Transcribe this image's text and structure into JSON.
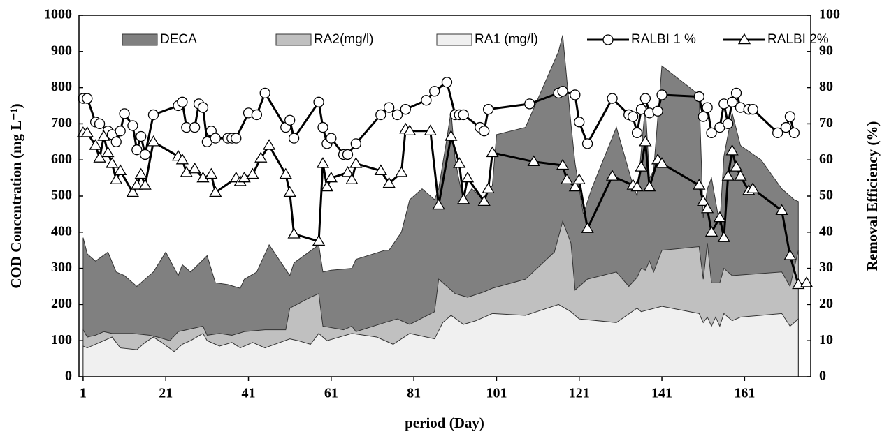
{
  "chart_data": {
    "type": "combo",
    "xlabel": "period (Day)",
    "ylabel": "COD Concentration (mg L⁻¹)",
    "y2label": "Removal Efficiency (%)",
    "xlim": [
      0,
      177
    ],
    "xticks": [
      1,
      21,
      41,
      61,
      81,
      101,
      121,
      141,
      161
    ],
    "ylim": [
      0,
      1000
    ],
    "yticks": [
      0,
      100,
      200,
      300,
      400,
      500,
      600,
      700,
      800,
      900,
      1000
    ],
    "y2lim": [
      0,
      100
    ],
    "y2ticks": [
      0,
      10,
      20,
      30,
      40,
      50,
      60,
      70,
      80,
      90,
      100
    ],
    "legend": "top",
    "series": [
      {
        "name": "DECA",
        "type": "area",
        "color": "#808080",
        "x": [
          1,
          2,
          4,
          7,
          9,
          11,
          14,
          16,
          18,
          21,
          24,
          25,
          27,
          31,
          33,
          36,
          39,
          40,
          43,
          46,
          51,
          52,
          58,
          59,
          61,
          66,
          67,
          74,
          75,
          78,
          80,
          83,
          86,
          87,
          89,
          90,
          91,
          92,
          93,
          95,
          98,
          100,
          101,
          108,
          116,
          117,
          119,
          120,
          122,
          124,
          130,
          134,
          135,
          137,
          138,
          139,
          141,
          150,
          151,
          152,
          153,
          155,
          156,
          158,
          160,
          165,
          170,
          173,
          174
        ],
        "values": [
          385,
          340,
          320,
          345,
          290,
          280,
          250,
          270,
          290,
          345,
          280,
          310,
          290,
          335,
          260,
          255,
          245,
          270,
          290,
          365,
          280,
          315,
          365,
          290,
          295,
          300,
          325,
          350,
          350,
          400,
          490,
          520,
          490,
          520,
          660,
          735,
          600,
          540,
          490,
          520,
          490,
          530,
          670,
          690,
          900,
          945,
          700,
          590,
          450,
          520,
          690,
          530,
          500,
          750,
          550,
          570,
          860,
          780,
          440,
          520,
          550,
          420,
          610,
          730,
          640,
          600,
          520,
          490,
          485
        ]
      },
      {
        "name": "RA2(mg/l)",
        "type": "area",
        "color": "#c0c0c0",
        "x": [
          1,
          2,
          4,
          6,
          8,
          10,
          13,
          17,
          19,
          22,
          24,
          30,
          31,
          34,
          37,
          40,
          45,
          50,
          51,
          56,
          58,
          59,
          64,
          66,
          67,
          74,
          77,
          80,
          86,
          87,
          91,
          94,
          98,
          100,
          108,
          115,
          117,
          119,
          120,
          123,
          130,
          133,
          135,
          136,
          137,
          138,
          139,
          141,
          150,
          151,
          152,
          153,
          155,
          156,
          158,
          170,
          172,
          174
        ],
        "values": [
          130,
          110,
          115,
          125,
          120,
          120,
          120,
          115,
          110,
          100,
          125,
          140,
          115,
          120,
          115,
          125,
          130,
          130,
          190,
          220,
          230,
          140,
          130,
          140,
          125,
          150,
          160,
          145,
          180,
          270,
          230,
          220,
          235,
          245,
          270,
          345,
          430,
          370,
          240,
          270,
          290,
          250,
          275,
          300,
          295,
          320,
          290,
          350,
          360,
          270,
          370,
          260,
          260,
          300,
          280,
          290,
          250,
          350
        ]
      },
      {
        "name": "RA1 (mg/l)",
        "type": "area",
        "color": "#f0f0f0",
        "x": [
          1,
          2,
          5,
          8,
          10,
          14,
          16,
          18,
          20,
          23,
          25,
          27,
          30,
          31,
          34,
          37,
          39,
          42,
          45,
          51,
          53,
          56,
          58,
          60,
          66,
          72,
          76,
          80,
          86,
          88,
          90,
          93,
          96,
          98,
          100,
          108,
          116,
          119,
          121,
          130,
          135,
          136,
          141,
          150,
          151,
          152,
          153,
          154,
          155,
          156,
          158,
          160,
          170,
          172,
          174
        ],
        "values": [
          85,
          80,
          95,
          110,
          80,
          75,
          95,
          110,
          95,
          70,
          90,
          100,
          120,
          100,
          85,
          95,
          80,
          95,
          80,
          105,
          100,
          90,
          120,
          100,
          120,
          110,
          90,
          120,
          105,
          150,
          170,
          145,
          155,
          165,
          175,
          170,
          200,
          180,
          160,
          150,
          190,
          180,
          195,
          175,
          150,
          165,
          140,
          165,
          140,
          175,
          155,
          165,
          175,
          140,
          160
        ]
      },
      {
        "name": "RALBI 1 %",
        "type": "line",
        "marker": "circle",
        "axis": "y2",
        "color": "#000000",
        "x": [
          1,
          2,
          4,
          5,
          7,
          8,
          9,
          10,
          11,
          13,
          14,
          15,
          16,
          18,
          24,
          25,
          26,
          28,
          29,
          30,
          31,
          32,
          33,
          36,
          37,
          38,
          41,
          43,
          45,
          50,
          51,
          52,
          58,
          59,
          60,
          61,
          64,
          65,
          67,
          73,
          75,
          77,
          79,
          84,
          86,
          89,
          91,
          92,
          93,
          97,
          98,
          99,
          109,
          116,
          117,
          120,
          121,
          123,
          129,
          133,
          134,
          135,
          136,
          137,
          138,
          140,
          141,
          150,
          151,
          152,
          153,
          155,
          156,
          157,
          158,
          159,
          160,
          162,
          163,
          169,
          171,
          172,
          173
        ],
        "values": [
          77,
          77,
          70.5,
          70,
          68,
          67,
          65,
          68,
          72.8,
          69.5,
          62.8,
          66.5,
          61.5,
          72.5,
          75,
          76,
          69,
          69,
          75.5,
          74.5,
          65,
          68,
          66,
          66,
          66,
          66,
          73,
          72.5,
          78.5,
          69,
          71,
          66,
          76,
          69,
          64.5,
          66,
          61.5,
          61.5,
          64.5,
          72.5,
          74.5,
          72.5,
          74,
          76.5,
          79,
          81.5,
          72.5,
          72.5,
          72.5,
          69,
          68,
          74,
          75.5,
          78.5,
          79,
          78,
          70.5,
          64.5,
          77,
          72.5,
          72,
          67.5,
          74,
          77,
          73,
          73.5,
          78,
          77.5,
          72,
          74.5,
          67.5,
          69,
          75.5,
          70,
          76,
          78.5,
          74.5,
          74,
          74,
          67.5,
          69,
          72,
          67.5
        ]
      },
      {
        "name": "RALBI 2%",
        "type": "line",
        "marker": "triangle",
        "axis": "y2",
        "color": "#000000",
        "x": [
          1,
          2,
          4,
          5,
          6,
          7,
          8,
          9,
          10,
          13,
          14,
          15,
          16,
          18,
          24,
          25,
          26,
          28,
          30,
          32,
          33,
          38,
          39,
          40,
          42,
          44,
          46,
          50,
          51,
          52,
          58,
          59,
          60,
          61,
          65,
          66,
          67,
          73,
          75,
          78,
          79,
          80,
          85,
          87,
          90,
          92,
          93,
          94,
          98,
          99,
          100,
          110,
          117,
          118,
          120,
          121,
          123,
          129,
          134,
          135,
          136,
          137,
          138,
          140,
          141,
          150,
          151,
          152,
          153,
          155,
          156,
          157,
          158,
          159,
          160,
          162,
          163,
          170,
          172,
          174,
          176
        ],
        "values": [
          67.5,
          67.5,
          64,
          60.5,
          66.5,
          62,
          59,
          54.5,
          57,
          51,
          53,
          56,
          53,
          65,
          61,
          60,
          56.5,
          57.5,
          55,
          56,
          51,
          55,
          54,
          55,
          56,
          60.5,
          64,
          56,
          51,
          39.5,
          37.5,
          59,
          52.5,
          55,
          56.5,
          54.5,
          59,
          57,
          53.5,
          56.5,
          68.5,
          68,
          68,
          47.5,
          66.5,
          59,
          49,
          55,
          48.5,
          52,
          62,
          59.5,
          58.5,
          54.5,
          52.5,
          54.5,
          41,
          55.5,
          53,
          52.5,
          58,
          65,
          52.5,
          60,
          59,
          53,
          48.5,
          46.5,
          40,
          44,
          38.5,
          55.5,
          62.5,
          58,
          55.5,
          51.5,
          52,
          46,
          33.5,
          25.5,
          26
        ]
      }
    ]
  }
}
